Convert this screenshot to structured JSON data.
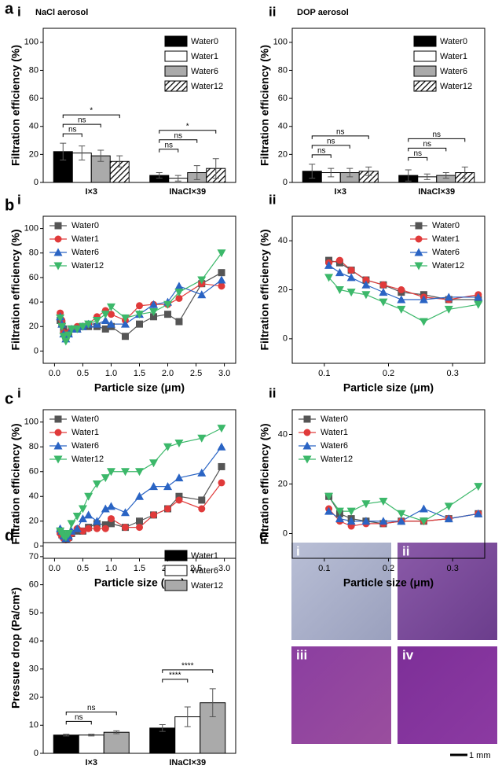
{
  "panel_letters": [
    "a",
    "b",
    "c",
    "d",
    "e"
  ],
  "micrographs": {
    "labels": [
      "i",
      "ii",
      "iii",
      "iv"
    ],
    "scale_bar": "1 mm"
  },
  "chart_data": [
    {
      "type": "bar",
      "subpanel": "i",
      "title": "NaCl aerosol",
      "ylabel": "Filtration efficiency (%)",
      "categories": [
        "I×3",
        "INaCl×39"
      ],
      "ylim": [
        0,
        110
      ],
      "yticks": [
        0,
        20,
        40,
        60,
        80,
        100
      ],
      "legend": "upper right",
      "series": [
        {
          "name": "Water0",
          "color": "#000000",
          "values": [
            22,
            5
          ],
          "errors": [
            6,
            2
          ]
        },
        {
          "name": "Water1",
          "color": "#ffffff",
          "values": [
            21,
            3
          ],
          "errors": [
            5,
            2
          ]
        },
        {
          "name": "Water6",
          "color": "#aaaaaa",
          "values": [
            19,
            7
          ],
          "errors": [
            4,
            5
          ]
        },
        {
          "name": "Water12",
          "color": "#000000",
          "hatch": true,
          "values": [
            15,
            10
          ],
          "errors": [
            4,
            7
          ]
        }
      ],
      "significance": [
        [
          "ns",
          "ns",
          "*"
        ],
        [
          "ns",
          "ns",
          "*"
        ]
      ]
    },
    {
      "type": "bar",
      "subpanel": "ii",
      "title": "DOP aerosol",
      "ylabel": "Filtration efficiency (%)",
      "categories": [
        "I×3",
        "INaCl×39"
      ],
      "ylim": [
        0,
        110
      ],
      "yticks": [
        0,
        20,
        40,
        60,
        80,
        100
      ],
      "legend": "upper right",
      "series": [
        {
          "name": "Water0",
          "color": "#000000",
          "values": [
            8,
            5
          ],
          "errors": [
            5,
            4
          ]
        },
        {
          "name": "Water1",
          "color": "#ffffff",
          "values": [
            7,
            4
          ],
          "errors": [
            3,
            2
          ]
        },
        {
          "name": "Water6",
          "color": "#aaaaaa",
          "values": [
            7,
            5
          ],
          "errors": [
            3,
            2
          ]
        },
        {
          "name": "Water12",
          "color": "#000000",
          "hatch": true,
          "values": [
            8,
            7
          ],
          "errors": [
            3,
            4
          ]
        }
      ],
      "significance": [
        [
          "ns",
          "ns",
          "ns"
        ],
        [
          "ns",
          "ns",
          "ns"
        ]
      ]
    },
    {
      "type": "line",
      "subpanel": "i",
      "ylabel": "Filtration efficiency (%)",
      "xlabel": "Particle size (μm)",
      "x": [
        0.1,
        0.13,
        0.16,
        0.2,
        0.25,
        0.3,
        0.4,
        0.5,
        0.6,
        0.75,
        0.9,
        1.0,
        1.25,
        1.5,
        1.75,
        2.0,
        2.2,
        2.6,
        2.95
      ],
      "xlim": [
        -0.2,
        3.2
      ],
      "xticks": [
        {
          "value": 0,
          "label": "0.0"
        },
        0.5,
        {
          "value": 1,
          "label": "1.0"
        },
        1.5,
        {
          "value": 2,
          "label": "2.0"
        },
        2.5,
        {
          "value": 3,
          "label": "3.0"
        }
      ],
      "ylim": [
        -10,
        110
      ],
      "yticks": [
        0,
        20,
        40,
        60,
        80,
        100
      ],
      "legend": "upper left",
      "series": [
        {
          "name": "Water0",
          "color": "#555555",
          "marker": "square",
          "values": [
            25,
            22,
            18,
            12,
            15,
            18,
            18,
            20,
            20,
            20,
            18,
            20,
            12,
            22,
            28,
            30,
            24,
            55,
            64
          ]
        },
        {
          "name": "Water1",
          "color": "#e03a3a",
          "marker": "circle",
          "values": [
            31,
            25,
            15,
            10,
            15,
            18,
            20,
            20,
            22,
            28,
            33,
            30,
            25,
            37,
            38,
            38,
            43,
            55,
            53
          ]
        },
        {
          "name": "Water6",
          "color": "#2a64c4",
          "marker": "triangle-up",
          "values": [
            28,
            22,
            14,
            10,
            14,
            18,
            18,
            20,
            22,
            22,
            25,
            22,
            22,
            30,
            38,
            40,
            53,
            46,
            58
          ]
        },
        {
          "name": "Water12",
          "color": "#3cb86a",
          "marker": "triangle-down",
          "values": [
            27,
            20,
            12,
            8,
            13,
            18,
            18,
            20,
            22,
            25,
            30,
            36,
            27,
            30,
            32,
            38,
            48,
            58,
            80
          ]
        }
      ]
    },
    {
      "type": "line",
      "subpanel": "ii",
      "ylabel": "Filtration efficiency (%)",
      "xlabel": "Particle size (μm)",
      "x": [
        0.107,
        0.124,
        0.142,
        0.165,
        0.192,
        0.22,
        0.255,
        0.294,
        0.34
      ],
      "xlim": [
        0.05,
        0.35
      ],
      "xticks": [
        0.1,
        0.2,
        0.3
      ],
      "ylim": [
        -10,
        50
      ],
      "yticks": [
        0,
        20,
        40
      ],
      "legend": "upper right",
      "series": [
        {
          "name": "Water0",
          "color": "#555555",
          "marker": "square",
          "values": [
            32,
            31,
            28,
            24,
            22,
            19,
            18,
            16,
            16
          ]
        },
        {
          "name": "Water1",
          "color": "#e03a3a",
          "marker": "circle",
          "values": [
            31,
            32,
            28,
            24,
            22,
            20,
            17,
            16,
            18
          ]
        },
        {
          "name": "Water6",
          "color": "#2a64c4",
          "marker": "triangle-up",
          "values": [
            30,
            27,
            25,
            22,
            19,
            16,
            16,
            17,
            17
          ]
        },
        {
          "name": "Water12",
          "color": "#3cb86a",
          "marker": "triangle-down",
          "values": [
            25,
            20,
            19,
            18,
            15,
            12,
            7,
            12,
            14
          ]
        }
      ]
    },
    {
      "type": "line",
      "subpanel": "i",
      "ylabel": "Filtration efficiency (%)",
      "xlabel": "Particle size (μm)",
      "x": [
        0.1,
        0.13,
        0.16,
        0.2,
        0.25,
        0.3,
        0.4,
        0.5,
        0.6,
        0.75,
        0.9,
        1.0,
        1.25,
        1.5,
        1.75,
        2.0,
        2.2,
        2.6,
        2.95
      ],
      "xlim": [
        -0.2,
        3.2
      ],
      "xticks": [
        {
          "value": 0,
          "label": "0.0"
        },
        0.5,
        {
          "value": 1,
          "label": "1.0"
        },
        1.5,
        {
          "value": 2,
          "label": "2.0"
        },
        2.5,
        {
          "value": 3,
          "label": "3.0"
        }
      ],
      "ylim": [
        -10,
        110
      ],
      "yticks": [
        0,
        20,
        40,
        60,
        80,
        100
      ],
      "legend": "upper left",
      "series": [
        {
          "name": "Water0",
          "color": "#555555",
          "marker": "square",
          "values": [
            12,
            9,
            8,
            6,
            7,
            10,
            12,
            12,
            15,
            18,
            17,
            18,
            15,
            20,
            25,
            30,
            40,
            37,
            64
          ]
        },
        {
          "name": "Water1",
          "color": "#e03a3a",
          "marker": "circle",
          "values": [
            10,
            8,
            6,
            5,
            6,
            10,
            14,
            12,
            14,
            14,
            14,
            22,
            15,
            15,
            25,
            30,
            37,
            30,
            51
          ]
        },
        {
          "name": "Water6",
          "color": "#2a64c4",
          "marker": "triangle-up",
          "values": [
            14,
            12,
            8,
            6,
            8,
            12,
            14,
            22,
            25,
            20,
            30,
            32,
            27,
            40,
            48,
            48,
            55,
            59,
            80
          ]
        },
        {
          "name": "Water12",
          "color": "#3cb86a",
          "marker": "triangle-down",
          "values": [
            12,
            10,
            8,
            7,
            10,
            18,
            24,
            30,
            40,
            50,
            55,
            60,
            60,
            60,
            67,
            80,
            83,
            87,
            95
          ]
        }
      ]
    },
    {
      "type": "line",
      "subpanel": "ii",
      "ylabel": "Filtration efficiency (%)",
      "xlabel": "Particle size (μm)",
      "x": [
        0.107,
        0.124,
        0.142,
        0.165,
        0.192,
        0.22,
        0.255,
        0.294,
        0.34
      ],
      "xlim": [
        0.05,
        0.35
      ],
      "xticks": [
        0.1,
        0.2,
        0.3
      ],
      "ylim": [
        -10,
        50
      ],
      "yticks": [
        0,
        20,
        40
      ],
      "legend": "upper left",
      "series": [
        {
          "name": "Water0",
          "color": "#555555",
          "marker": "square",
          "values": [
            15,
            8,
            6,
            5,
            4,
            5,
            5,
            6,
            8
          ]
        },
        {
          "name": "Water1",
          "color": "#e03a3a",
          "marker": "circle",
          "values": [
            10,
            5,
            3,
            4,
            4,
            5,
            5,
            6,
            8
          ]
        },
        {
          "name": "Water6",
          "color": "#2a64c4",
          "marker": "triangle-up",
          "values": [
            9,
            6,
            5,
            5,
            5,
            5,
            10,
            6,
            8
          ]
        },
        {
          "name": "Water12",
          "color": "#3cb86a",
          "marker": "triangle-down",
          "values": [
            15,
            9,
            9,
            12,
            13,
            8,
            5,
            11,
            19
          ]
        }
      ]
    },
    {
      "type": "bar",
      "ylabel": "Pressure drop (Pa/cm²)",
      "categories": [
        "I×3",
        "INaCl×39"
      ],
      "ylim": [
        0,
        75
      ],
      "yticks": [
        0,
        10,
        20,
        30,
        40,
        50,
        60,
        70
      ],
      "legend": "upper right",
      "series": [
        {
          "name": "Water1",
          "color": "#000000",
          "values": [
            6.5,
            9
          ],
          "errors": [
            0.3,
            1.2
          ]
        },
        {
          "name": "Water6",
          "color": "#ffffff",
          "values": [
            6.5,
            13
          ],
          "errors": [
            0.3,
            3.5
          ]
        },
        {
          "name": "Water12",
          "color": "#aaaaaa",
          "values": [
            7.5,
            18
          ],
          "errors": [
            0.5,
            5
          ]
        }
      ],
      "significance": [
        [
          "ns",
          "ns"
        ],
        [
          "****",
          "****"
        ]
      ]
    }
  ]
}
